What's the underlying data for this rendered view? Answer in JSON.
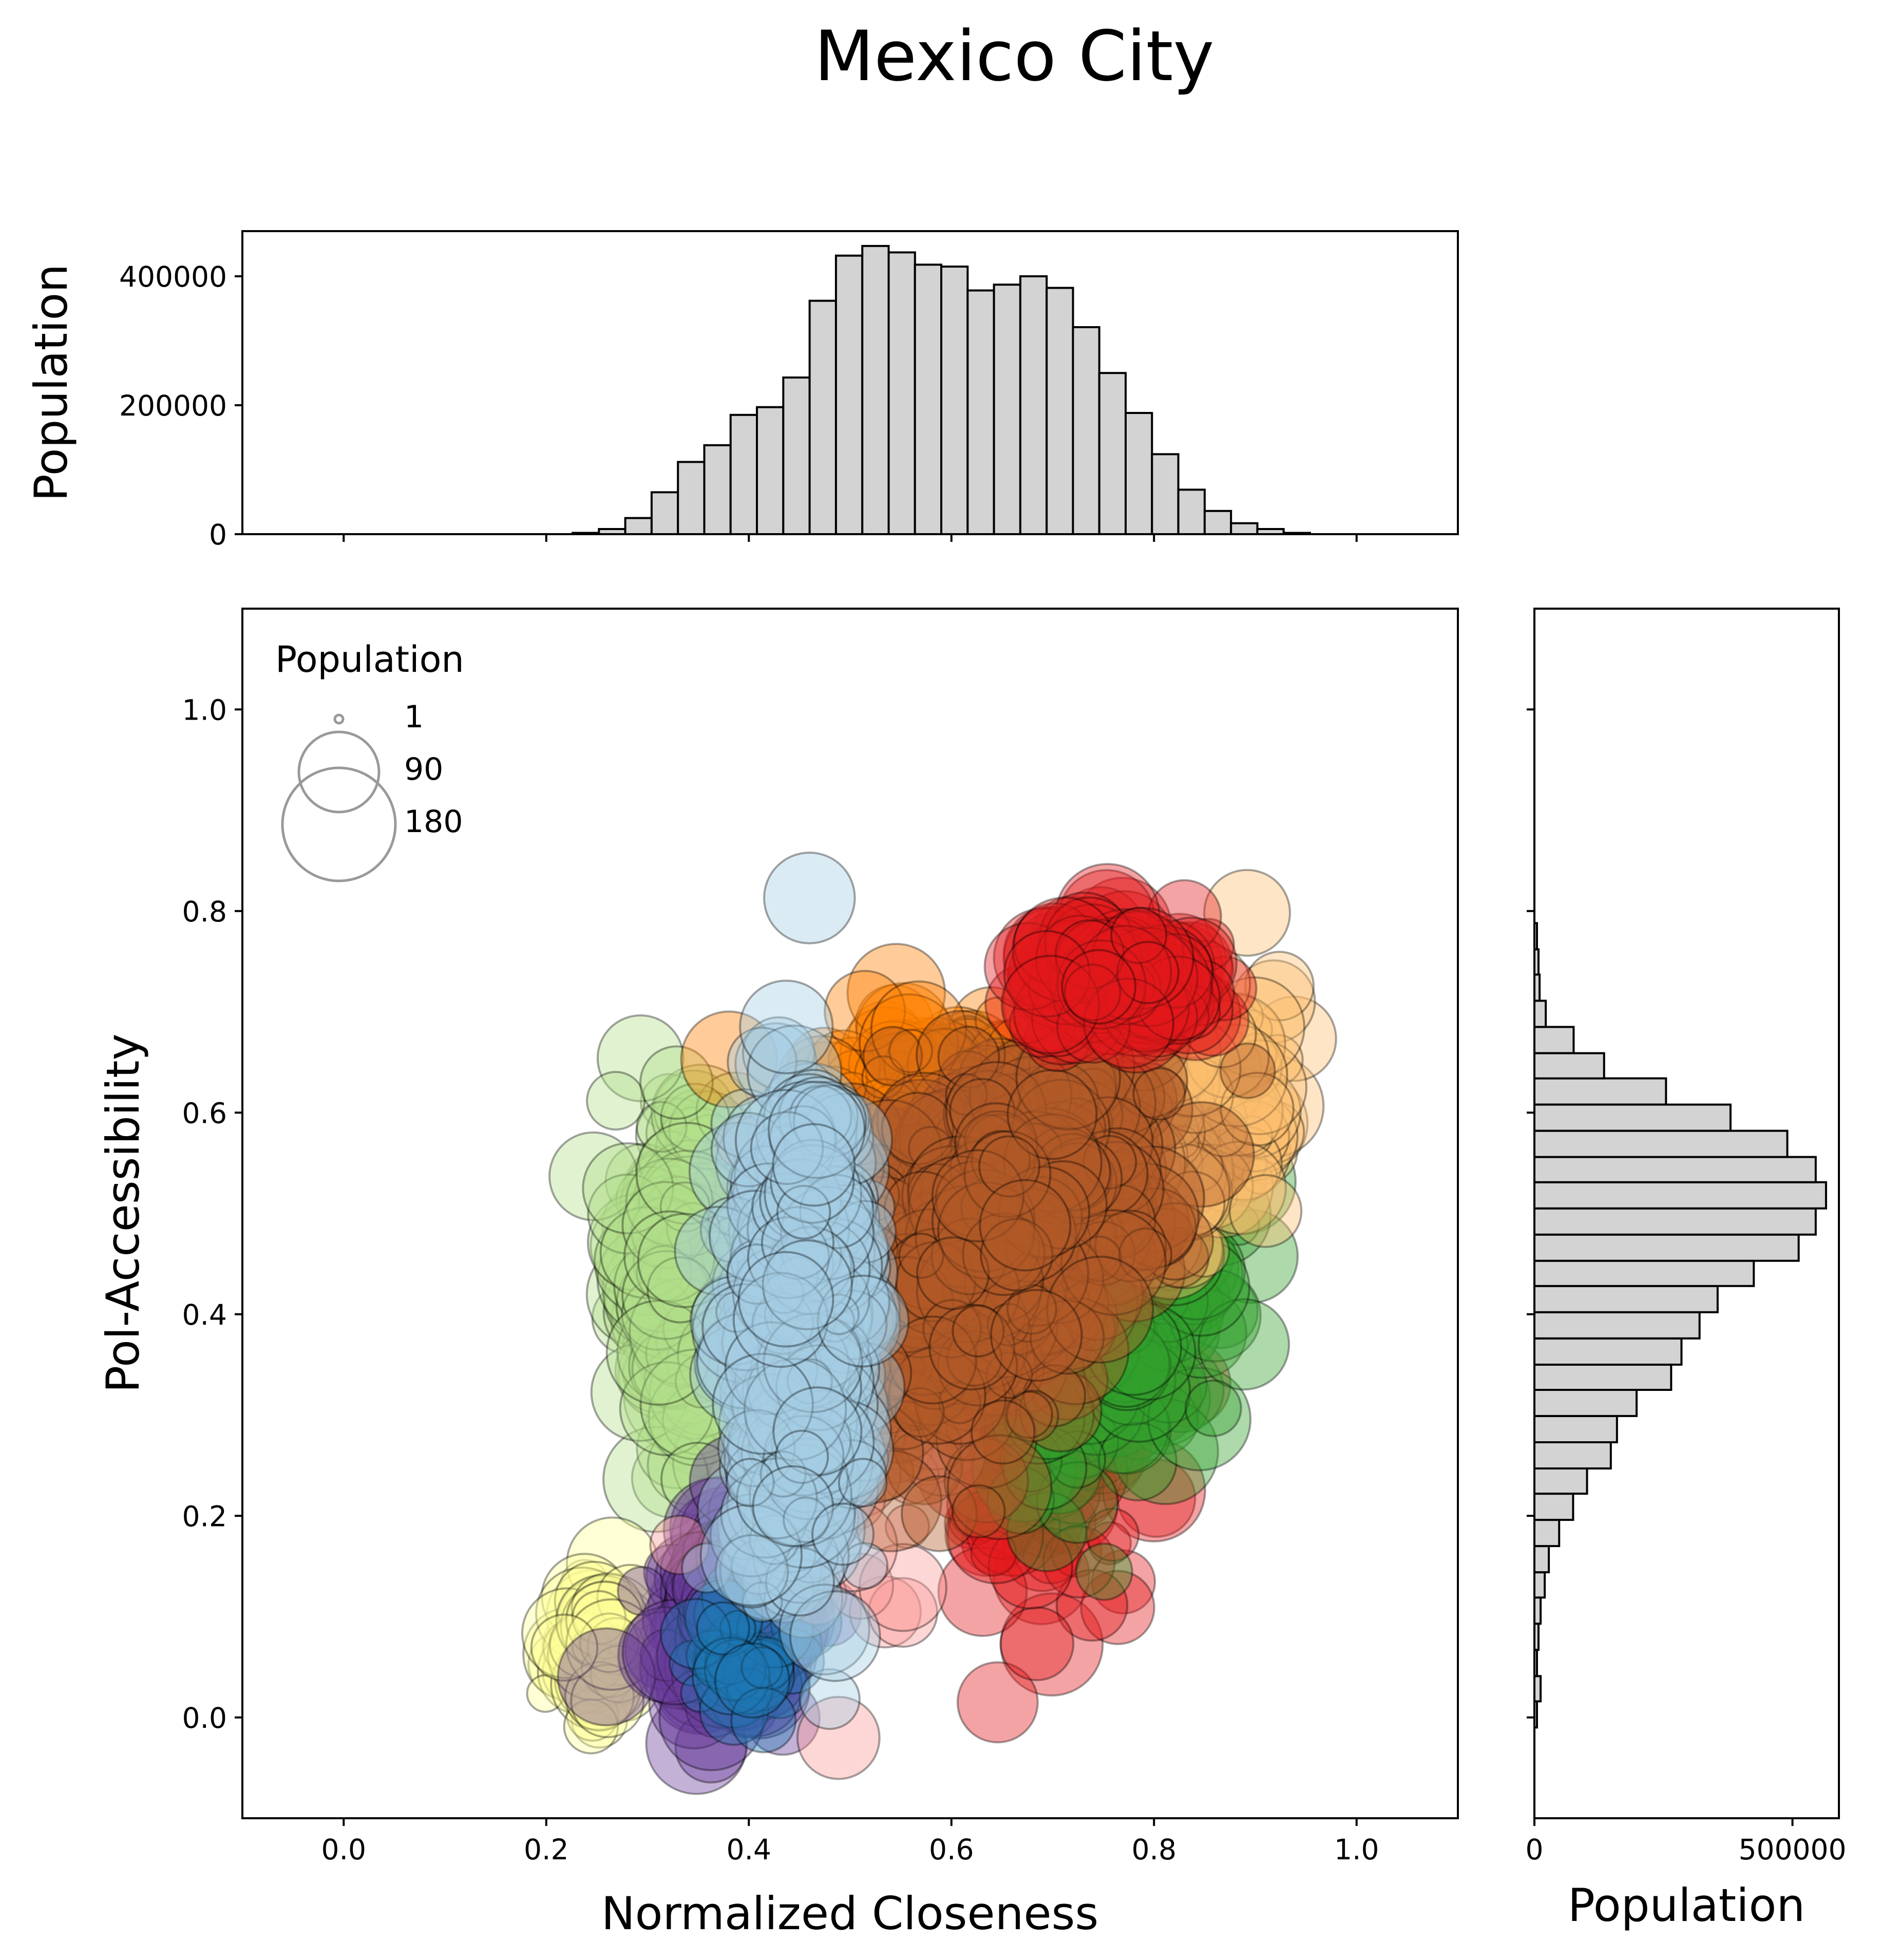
{
  "figure_title": "Mexico City",
  "chart_data": [
    {
      "type": "scatter",
      "name": "main",
      "xlabel": "Normalized Closeness",
      "ylabel": "Pol-Accessibility",
      "xlim": [
        -0.1,
        1.1
      ],
      "ylim": [
        -0.1,
        1.1
      ],
      "xticks": [
        0.0,
        0.2,
        0.4,
        0.6,
        0.8,
        1.0
      ],
      "xtick_labels": [
        "0.0",
        "0.2",
        "0.4",
        "0.6",
        "0.8",
        "1.0"
      ],
      "yticks": [
        0.0,
        0.2,
        0.4,
        0.6,
        0.8,
        1.0
      ],
      "ytick_labels": [
        "0.0",
        "0.2",
        "0.4",
        "0.6",
        "0.8",
        "1.0"
      ],
      "grid": false,
      "marker_size_meaning": "Population",
      "point_alpha": 0.4,
      "point_edge_color": "#000000",
      "legend": {
        "title": "Population",
        "placement": "upper-left",
        "entries": [
          {
            "label": "1",
            "value": 1
          },
          {
            "label": "90",
            "value": 90
          },
          {
            "label": "180",
            "value": 180
          }
        ]
      },
      "clusters": [
        {
          "color": "#b2df8a",
          "center": [
            0.33,
            0.44
          ],
          "spread": [
            0.04,
            0.14
          ],
          "tilt": 0.0,
          "n": 170,
          "size_range": [
            30,
            160
          ]
        },
        {
          "color": "#ffff99",
          "center": [
            0.25,
            0.07
          ],
          "spread": [
            0.025,
            0.05
          ],
          "tilt": 0.0,
          "n": 70,
          "size_range": [
            10,
            120
          ]
        },
        {
          "color": "#6a3d9a",
          "center": [
            0.38,
            0.1
          ],
          "spread": [
            0.05,
            0.07
          ],
          "tilt": 0.2,
          "n": 200,
          "size_range": [
            20,
            150
          ]
        },
        {
          "color": "#1f78b4",
          "center": [
            0.38,
            0.06
          ],
          "spread": [
            0.05,
            0.05
          ],
          "tilt": 0.0,
          "n": 40,
          "size_range": [
            10,
            80
          ]
        },
        {
          "color": "#e31a1c",
          "center": [
            0.7,
            0.3
          ],
          "spread": [
            0.08,
            0.13
          ],
          "tilt": 0.4,
          "n": 160,
          "size_range": [
            20,
            140
          ]
        },
        {
          "color": "#33a02c",
          "center": [
            0.76,
            0.4
          ],
          "spread": [
            0.1,
            0.13
          ],
          "tilt": 0.4,
          "n": 160,
          "size_range": [
            20,
            150
          ]
        },
        {
          "color": "#fb9a99",
          "center": [
            0.52,
            0.3
          ],
          "spread": [
            0.1,
            0.2
          ],
          "tilt": 0.2,
          "n": 60,
          "size_range": [
            20,
            120
          ]
        },
        {
          "color": "#ff7f00",
          "center": [
            0.58,
            0.62
          ],
          "spread": [
            0.1,
            0.06
          ],
          "tilt": 0.0,
          "n": 120,
          "size_range": [
            20,
            130
          ]
        },
        {
          "color": "#fdbf6f",
          "center": [
            0.82,
            0.6
          ],
          "spread": [
            0.09,
            0.09
          ],
          "tilt": 0.2,
          "n": 210,
          "size_range": [
            10,
            140
          ]
        },
        {
          "color": "#b15928",
          "center": [
            0.64,
            0.46
          ],
          "spread": [
            0.11,
            0.14
          ],
          "tilt": 0.45,
          "n": 600,
          "size_range": [
            20,
            150
          ]
        },
        {
          "color": "#a6cee3",
          "center": [
            0.45,
            0.38
          ],
          "spread": [
            0.045,
            0.2
          ],
          "tilt": 0.3,
          "n": 420,
          "size_range": [
            20,
            140
          ]
        },
        {
          "color": "#e31a1c",
          "center": [
            0.77,
            0.73
          ],
          "spread": [
            0.08,
            0.04
          ],
          "tilt": 0.0,
          "n": 140,
          "size_range": [
            20,
            150
          ]
        }
      ]
    },
    {
      "type": "bar",
      "name": "top-histogram",
      "orientation": "vertical",
      "ylabel": "Population",
      "xlim": [
        -0.1,
        1.1
      ],
      "ylim": [
        0,
        470000
      ],
      "yticks": [
        0,
        200000,
        400000
      ],
      "ytick_labels": [
        "0",
        "200000",
        "400000"
      ],
      "bar_color": "#d3d3d3",
      "edge_color": "#000000",
      "bin_edges": [
        0.2,
        0.226,
        0.252,
        0.278,
        0.304,
        0.33,
        0.356,
        0.382,
        0.408,
        0.434,
        0.46,
        0.486,
        0.512,
        0.538,
        0.564,
        0.59,
        0.616,
        0.642,
        0.668,
        0.694,
        0.72,
        0.746,
        0.772,
        0.798,
        0.824,
        0.85,
        0.876,
        0.902,
        0.928,
        0.954,
        0.98
      ],
      "values": [
        0,
        2000,
        8000,
        25000,
        65000,
        112000,
        138000,
        185000,
        197000,
        243000,
        362000,
        432000,
        447000,
        437000,
        418000,
        415000,
        378000,
        387000,
        400000,
        382000,
        321000,
        250000,
        188000,
        124000,
        69000,
        36000,
        17000,
        8000,
        2000,
        0
      ]
    },
    {
      "type": "bar",
      "name": "right-histogram",
      "orientation": "horizontal",
      "xlabel": "Population",
      "xlim": [
        0,
        590000
      ],
      "xticks": [
        0,
        500000
      ],
      "xtick_labels": [
        "0",
        "500000"
      ],
      "ylim": [
        -0.1,
        1.1
      ],
      "bar_color": "#d3d3d3",
      "edge_color": "#000000",
      "bin_edges": [
        -0.01,
        0.016,
        0.041,
        0.067,
        0.093,
        0.119,
        0.144,
        0.17,
        0.196,
        0.222,
        0.247,
        0.273,
        0.299,
        0.325,
        0.35,
        0.376,
        0.402,
        0.428,
        0.453,
        0.479,
        0.505,
        0.531,
        0.556,
        0.582,
        0.608,
        0.634,
        0.659,
        0.685,
        0.711,
        0.737,
        0.762,
        0.788
      ],
      "values": [
        5000,
        12000,
        5000,
        8000,
        12000,
        20000,
        28000,
        48000,
        75000,
        102000,
        148000,
        160000,
        198000,
        265000,
        285000,
        320000,
        355000,
        425000,
        512000,
        545000,
        565000,
        545000,
        490000,
        380000,
        255000,
        135000,
        76000,
        22000,
        10000,
        8000,
        5000
      ]
    }
  ]
}
